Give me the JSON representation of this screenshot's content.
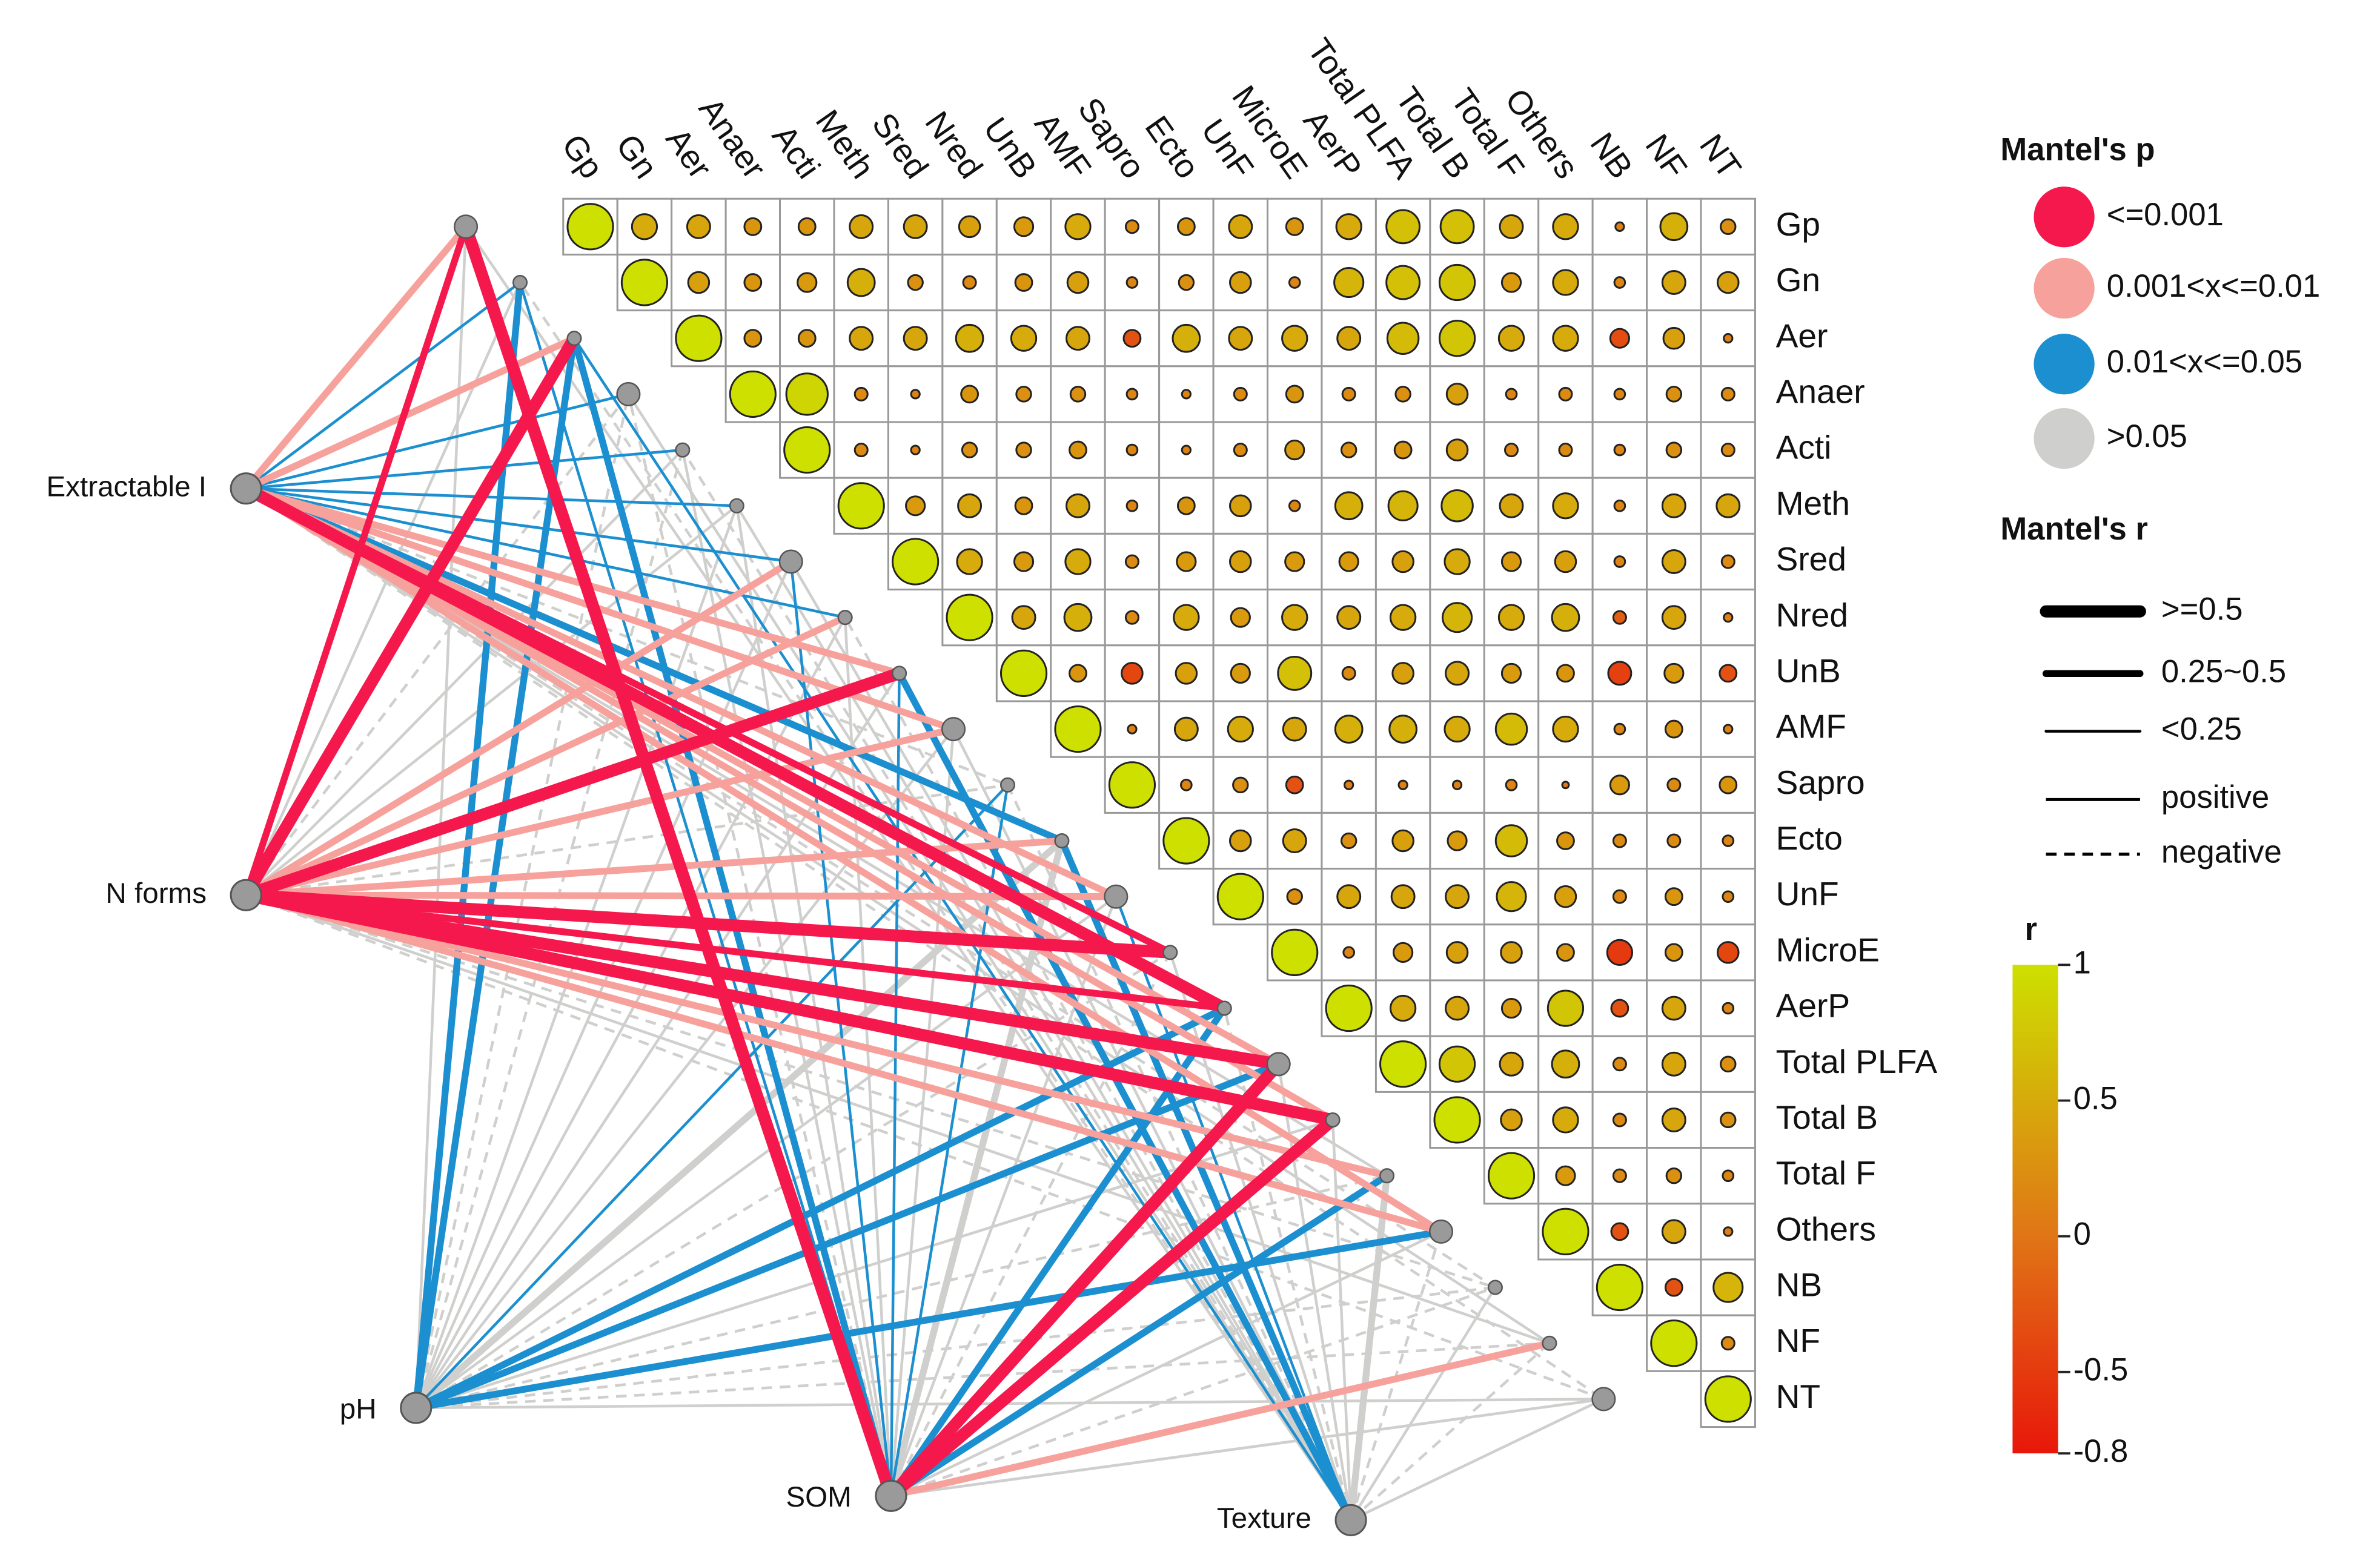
{
  "chart_data": {
    "type": "mantel-correlogram",
    "variables": [
      "Gp",
      "Gn",
      "Aer",
      "Anaer",
      "Acti",
      "Meth",
      "Sred",
      "Nred",
      "UnB",
      "AMF",
      "Sapro",
      "Ecto",
      "UnF",
      "MicroE",
      "AerP",
      "Total PLFA",
      "Total B",
      "Total F",
      "Others",
      "NB",
      "NF",
      "NT"
    ],
    "matrix": [
      [
        1,
        0.5,
        0.45,
        0.3,
        0.3,
        0.45,
        0.45,
        0.4,
        0.35,
        0.5,
        0.2,
        0.3,
        0.45,
        0.3,
        0.5,
        0.7,
        0.7,
        0.45,
        0.5,
        0.1,
        0.55,
        0.25
      ],
      [
        1,
        0.4,
        0.3,
        0.35,
        0.55,
        0.25,
        0.2,
        0.3,
        0.4,
        0.15,
        0.25,
        0.4,
        0.15,
        0.6,
        0.7,
        0.75,
        0.35,
        0.5,
        0.15,
        0.45,
        0.4
      ],
      [
        1,
        0.3,
        0.3,
        0.45,
        0.45,
        0.55,
        0.5,
        0.45,
        -0.3,
        0.55,
        0.45,
        0.5,
        0.45,
        0.65,
        0.75,
        0.5,
        0.5,
        -0.35,
        0.4,
        0.1
      ],
      [
        1,
        0.9,
        0.2,
        0.1,
        0.3,
        0.25,
        0.25,
        0.15,
        0.1,
        0.2,
        0.3,
        0.2,
        0.25,
        0.4,
        0.15,
        0.2,
        0.15,
        0.25,
        0.2
      ],
      [
        1,
        0.2,
        0.1,
        0.25,
        0.25,
        0.3,
        0.15,
        0.1,
        0.2,
        0.35,
        0.25,
        0.3,
        0.4,
        0.2,
        0.2,
        0.15,
        0.25,
        0.2
      ],
      [
        1,
        0.35,
        0.45,
        0.3,
        0.45,
        0.15,
        0.3,
        0.4,
        0.15,
        0.55,
        0.6,
        0.65,
        0.45,
        0.5,
        0.15,
        0.45,
        0.45
      ],
      [
        1,
        0.5,
        0.35,
        0.5,
        0.2,
        0.35,
        0.4,
        0.35,
        0.35,
        0.4,
        0.5,
        0.35,
        0.4,
        0.15,
        0.45,
        0.2
      ],
      [
        1,
        0.45,
        0.55,
        0.2,
        0.5,
        0.35,
        0.5,
        0.45,
        0.5,
        0.6,
        0.5,
        0.55,
        -0.2,
        0.45,
        0.1
      ],
      [
        1,
        0.3,
        -0.4,
        0.4,
        0.35,
        0.7,
        0.2,
        0.4,
        0.45,
        0.35,
        0.3,
        -0.45,
        0.35,
        -0.3
      ],
      [
        1,
        0.1,
        0.45,
        0.5,
        0.45,
        0.55,
        0.55,
        0.5,
        0.65,
        0.5,
        0.15,
        0.3,
        0.1
      ],
      [
        1,
        0.15,
        0.25,
        -0.3,
        0.1,
        0.1,
        0.1,
        0.15,
        0.05,
        0.35,
        0.2,
        0.3
      ],
      [
        1,
        0.4,
        0.45,
        0.25,
        0.4,
        0.35,
        0.65,
        0.3,
        0.2,
        0.2,
        0.15
      ],
      [
        1,
        0.25,
        0.45,
        0.45,
        0.45,
        0.6,
        0.4,
        0.2,
        0.3,
        0.15
      ],
      [
        1,
        0.15,
        0.35,
        0.4,
        0.4,
        0.3,
        -0.5,
        0.3,
        -0.4
      ],
      [
        1,
        0.5,
        0.45,
        0.35,
        0.75,
        -0.3,
        0.45,
        0.15
      ],
      [
        1,
        0.75,
        0.45,
        0.55,
        0.2,
        0.45,
        0.25
      ],
      [
        1,
        0.4,
        0.5,
        0.2,
        0.45,
        0.25
      ],
      [
        1,
        0.35,
        0.2,
        0.25,
        0.15
      ],
      [
        1,
        -0.3,
        0.45,
        0.1
      ],
      [
        1,
        -0.3,
        0.6
      ],
      [
        1,
        0.2
      ],
      [
        1
      ]
    ],
    "mantel": [
      {
        "env": "Extractable I",
        "p": [
          1,
          2,
          1,
          2,
          2,
          2,
          2,
          2,
          1,
          1,
          3,
          2,
          1,
          0,
          0,
          1,
          1,
          3,
          1,
          3,
          3,
          3
        ],
        "r": [
          1,
          2,
          1,
          2,
          2,
          2,
          2,
          2,
          1,
          1,
          2,
          1,
          1,
          1,
          0,
          1,
          1,
          2,
          1,
          2,
          2,
          2
        ],
        "sign": [
          0,
          0,
          0,
          0,
          0,
          0,
          0,
          0,
          0,
          0,
          1,
          0,
          0,
          0,
          0,
          0,
          0,
          0,
          0,
          1,
          0,
          1
        ]
      },
      {
        "env": "N forms",
        "p": [
          0,
          3,
          0,
          3,
          3,
          3,
          1,
          1,
          0,
          1,
          3,
          1,
          1,
          0,
          0,
          0,
          0,
          1,
          1,
          3,
          3,
          3
        ],
        "r": [
          1,
          2,
          0,
          2,
          2,
          2,
          1,
          1,
          0,
          1,
          2,
          1,
          1,
          0,
          1,
          0,
          0,
          1,
          1,
          2,
          2,
          2
        ],
        "sign": [
          0,
          0,
          0,
          1,
          0,
          0,
          0,
          0,
          0,
          0,
          1,
          0,
          0,
          0,
          0,
          0,
          0,
          0,
          0,
          1,
          0,
          1
        ]
      },
      {
        "env": "pH",
        "p": [
          3,
          2,
          2,
          3,
          3,
          3,
          3,
          3,
          3,
          3,
          2,
          3,
          3,
          3,
          2,
          2,
          3,
          3,
          2,
          3,
          3,
          3
        ],
        "r": [
          2,
          1,
          1,
          2,
          2,
          2,
          2,
          2,
          2,
          2,
          2,
          1,
          2,
          2,
          1,
          1,
          2,
          2,
          1,
          2,
          2,
          2
        ],
        "sign": [
          0,
          0,
          0,
          1,
          1,
          0,
          0,
          0,
          0,
          0,
          0,
          0,
          0,
          1,
          0,
          0,
          0,
          1,
          0,
          1,
          1,
          0
        ]
      },
      {
        "env": "SOM",
        "p": [
          0,
          2,
          2,
          3,
          3,
          3,
          2,
          3,
          2,
          3,
          2,
          3,
          3,
          3,
          2,
          0,
          0,
          2,
          3,
          3,
          1,
          3
        ],
        "r": [
          0,
          2,
          1,
          2,
          2,
          2,
          2,
          2,
          2,
          2,
          2,
          1,
          2,
          2,
          1,
          0,
          0,
          1,
          2,
          2,
          1,
          2
        ],
        "sign": [
          0,
          0,
          0,
          1,
          0,
          0,
          0,
          0,
          0,
          0,
          0,
          0,
          0,
          1,
          0,
          0,
          0,
          0,
          0,
          1,
          0,
          0
        ]
      },
      {
        "env": "Texture",
        "p": [
          3,
          3,
          2,
          3,
          3,
          3,
          3,
          3,
          2,
          3,
          3,
          2,
          2,
          3,
          3,
          3,
          3,
          3,
          3,
          3,
          3,
          3
        ],
        "r": [
          2,
          2,
          2,
          2,
          2,
          2,
          2,
          2,
          1,
          2,
          2,
          1,
          2,
          2,
          2,
          2,
          2,
          1,
          2,
          2,
          2,
          2
        ],
        "sign": [
          0,
          1,
          0,
          0,
          1,
          0,
          0,
          1,
          0,
          0,
          1,
          0,
          0,
          0,
          1,
          0,
          0,
          0,
          1,
          0,
          1,
          0
        ]
      }
    ],
    "legend_p": {
      "title": "Mantel's p",
      "items": [
        {
          "label": "<=0.001",
          "color": "#f5184c"
        },
        {
          "label": "0.001<x<=0.01",
          "color": "#f7a19c"
        },
        {
          "label": "0.01<x<=0.05",
          "color": "#1b8fcf"
        },
        {
          "label": ">0.05",
          "color": "#cfcfcd"
        }
      ]
    },
    "legend_r": {
      "title": "Mantel's r",
      "items": [
        {
          "label": ">=0.5",
          "width": 8
        },
        {
          "label": "0.25~0.5",
          "width": 4.5
        },
        {
          "label": "<0.25",
          "width": 1.8
        }
      ]
    },
    "linetype": [
      {
        "label": "positive",
        "dash": "none"
      },
      {
        "label": "negative",
        "dash": "7,5"
      }
    ],
    "colorbar": {
      "title": "r",
      "lim": [
        -0.8,
        1
      ],
      "ticks": [
        1,
        0.5,
        0,
        -0.5,
        -0.8
      ],
      "stops": [
        {
          "value": -0.8,
          "color": "#e8170a"
        },
        {
          "value": 0,
          "color": "#e07516"
        },
        {
          "value": 1,
          "color": "#cde000"
        }
      ]
    }
  }
}
